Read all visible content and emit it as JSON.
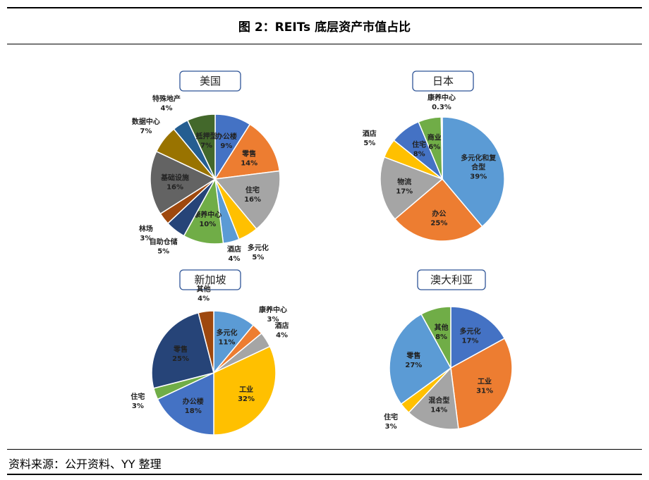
{
  "header": {
    "title": "图 2：REITs 底层资产市值占比"
  },
  "footer": {
    "source": "资料来源：公开资料、YY 整理"
  },
  "chart_data": [
    {
      "type": "pie",
      "title": "美国",
      "categories": [
        "办公楼",
        "零售",
        "住宅",
        "多元化",
        "酒店",
        "康养中心",
        "自助仓储",
        "林场",
        "基础设施",
        "数据中心",
        "特殊地产",
        "抵押型"
      ],
      "values": [
        9,
        14,
        16,
        5,
        4,
        10,
        5,
        3,
        16,
        7,
        4,
        7
      ],
      "colors": [
        "#4472C4",
        "#ED7D31",
        "#A5A5A5",
        "#FFC000",
        "#5B9BD5",
        "#70AD47",
        "#264478",
        "#9E480E",
        "#636363",
        "#997300",
        "#255E91",
        "#43682B"
      ],
      "unit": "%"
    },
    {
      "type": "pie",
      "title": "日本",
      "categories": [
        "多元化和复合型",
        "办公",
        "物流",
        "酒店",
        "住宅",
        "商业",
        "康养中心"
      ],
      "values": [
        39,
        25,
        17,
        5,
        8,
        6,
        0.3
      ],
      "colors": [
        "#5B9BD5",
        "#ED7D31",
        "#A5A5A5",
        "#FFC000",
        "#4472C4",
        "#70AD47",
        "#264478"
      ],
      "unit": "%"
    },
    {
      "type": "pie",
      "title": "新加坡",
      "categories": [
        "多元化",
        "康养中心",
        "酒店",
        "工业",
        "办公楼",
        "住宅",
        "零售",
        "其他"
      ],
      "values": [
        11,
        3,
        4,
        32,
        18,
        3,
        25,
        4
      ],
      "colors": [
        "#5B9BD5",
        "#ED7D31",
        "#A5A5A5",
        "#FFC000",
        "#4472C4",
        "#70AD47",
        "#264478",
        "#9E480E"
      ],
      "unit": "%"
    },
    {
      "type": "pie",
      "title": "澳大利亚",
      "categories": [
        "多元化",
        "工业",
        "混合型",
        "住宅",
        "零售",
        "其他"
      ],
      "values": [
        17,
        31,
        14,
        3,
        27,
        8
      ],
      "colors": [
        "#4472C4",
        "#ED7D31",
        "#A5A5A5",
        "#FFC000",
        "#5B9BD5",
        "#70AD47"
      ],
      "unit": "%"
    }
  ]
}
